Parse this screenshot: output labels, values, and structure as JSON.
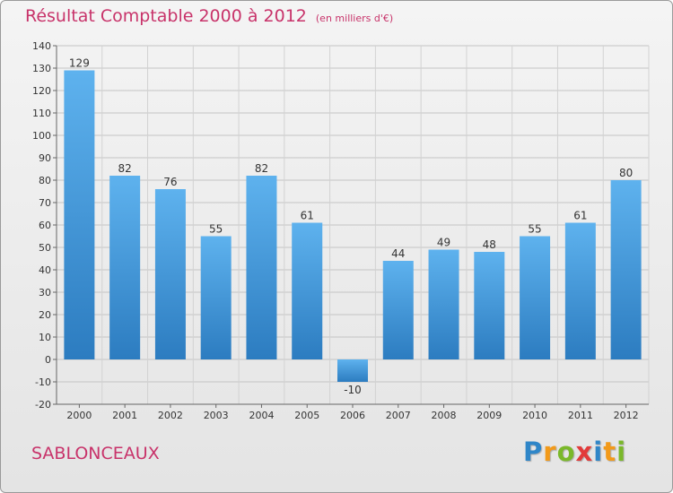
{
  "chart_data": {
    "type": "bar",
    "title": "Résultat Comptable 2000 à 2012",
    "subtitle": "(en milliers d'€)",
    "categories": [
      "2000",
      "2001",
      "2002",
      "2003",
      "2004",
      "2005",
      "2006",
      "2007",
      "2008",
      "2009",
      "2010",
      "2011",
      "2012"
    ],
    "values": [
      129,
      82,
      76,
      55,
      82,
      61,
      -10,
      44,
      49,
      48,
      55,
      61,
      80
    ],
    "data_labels": [
      "129",
      "82",
      "76",
      "55",
      "82",
      "61",
      "-10",
      "44",
      "49",
      "48",
      "55",
      "61",
      "80"
    ],
    "yticks": [
      -20,
      -10,
      0,
      10,
      20,
      30,
      40,
      50,
      60,
      70,
      80,
      90,
      100,
      110,
      120,
      130,
      140
    ],
    "ylim": [
      -20,
      140
    ],
    "xlabel": "",
    "ylabel": "",
    "grid": true,
    "bar_color": "#4a9fe0"
  },
  "place_name": "SABLONCEAUX",
  "logo": {
    "letters": [
      "P",
      "r",
      "o",
      "x",
      "i",
      "t",
      "i"
    ],
    "colors": [
      "#2f86c8",
      "#f29a1a",
      "#7ab82a",
      "#e23b3b",
      "#2f86c8",
      "#f29a1a",
      "#7ab82a"
    ]
  }
}
